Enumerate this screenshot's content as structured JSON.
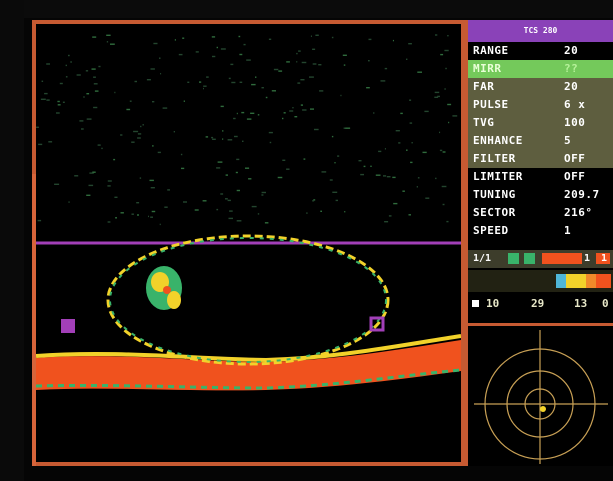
{
  "panel": {
    "title": "TCS 280",
    "params": [
      {
        "name": "RANGE",
        "value": "20"
      },
      {
        "name": "MIRR",
        "value": "??"
      },
      {
        "name": "FAR",
        "value": "20"
      },
      {
        "name": "PULSE",
        "value": "6 x"
      },
      {
        "name": "TVG",
        "value": "100"
      },
      {
        "name": "ENHANCE",
        "value": "5"
      },
      {
        "name": "FILTER",
        "value": "OFF"
      },
      {
        "name": "LIMITER",
        "value": "OFF"
      },
      {
        "name": "TUNING",
        "value": "209.7"
      },
      {
        "name": "SECTOR",
        "value": "216°"
      },
      {
        "name": "SPEED",
        "value": "1"
      }
    ],
    "status": {
      "page": "1/1",
      "indicators": [
        "1",
        "1"
      ],
      "scale": [
        "10",
        "29",
        "13",
        "0"
      ]
    }
  },
  "colors": {
    "frame": "#c65a32",
    "panel_title_bg": "#8a42b8",
    "selected_row": "#74c95b",
    "echo_strong": "#f0521e",
    "echo_medium": "#f2d22a",
    "echo_weak": "#39b36a",
    "range_line": "#a23fb8"
  }
}
